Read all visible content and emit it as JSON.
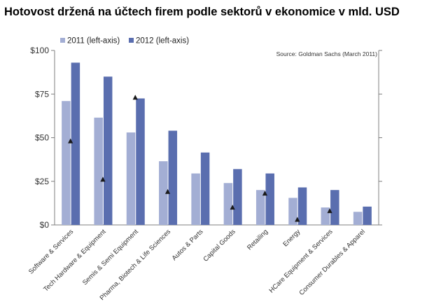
{
  "title": "Hotovost držená na účtech firem podle sektorů v ekonomice v mld. USD",
  "source": "Source: Goldman Sachs (March 2011)",
  "colors": {
    "s2011": "#a3aed4",
    "s2012": "#5a6eaf",
    "marker": "#1a1a1a",
    "axis": "#7f7f7f"
  },
  "chart_data": {
    "type": "bar",
    "categories": [
      "Software & Services",
      "Tech Hardware & Equipment",
      "Semis & Semi Equipment",
      "Pharma, Biotech & Life Sciences",
      "Autos & Parts",
      "Capital Goods",
      "Retailing",
      "Energy",
      "HCare Equipment & Services",
      "Consumer Durables & Apparel"
    ],
    "series": [
      {
        "name": "2011 (left-axis)",
        "values": [
          71,
          61.5,
          53,
          36.5,
          29.5,
          24,
          20,
          15.5,
          10,
          7.5
        ]
      },
      {
        "name": "2012 (left-axis)",
        "values": [
          93,
          85,
          72.5,
          54,
          41.5,
          32,
          29.5,
          21.5,
          20,
          10.5
        ]
      }
    ],
    "markers": [
      48,
      26,
      73,
      19,
      0,
      10,
      18,
      3,
      8,
      0
    ],
    "marker_present": [
      true,
      true,
      true,
      true,
      false,
      true,
      true,
      true,
      true,
      false
    ],
    "ylim": [
      0,
      100
    ],
    "yticks": [
      0,
      25,
      50,
      75,
      100
    ],
    "ytick_labels": [
      "$0",
      "$25",
      "$50",
      "$75",
      "$100"
    ],
    "grid": false,
    "legend": "top-left"
  }
}
